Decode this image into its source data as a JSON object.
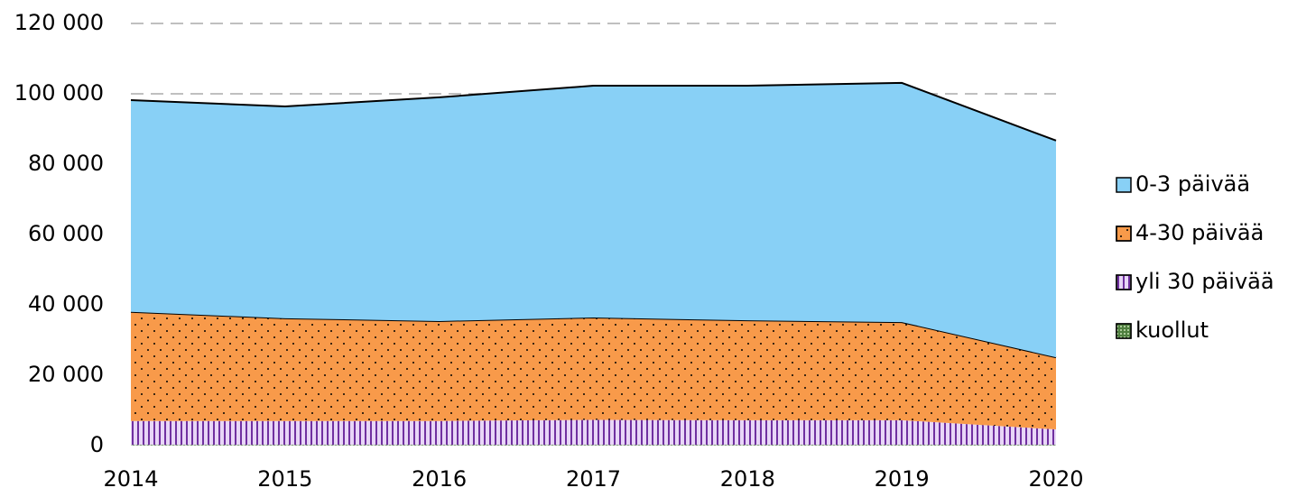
{
  "chart_data": {
    "type": "stacked_area",
    "x": [
      2014,
      2015,
      2016,
      2017,
      2018,
      2019,
      2020
    ],
    "xlim": [
      2014,
      2020
    ],
    "xticks": [
      2014,
      2015,
      2016,
      2017,
      2018,
      2019,
      2020
    ],
    "ylim": [
      0,
      120000
    ],
    "yticks": [
      {
        "value": 0,
        "label": "0"
      },
      {
        "value": 20000,
        "label": "20 000"
      },
      {
        "value": 40000,
        "label": "40 000"
      },
      {
        "value": 60000,
        "label": "60 000"
      },
      {
        "value": 80000,
        "label": "80 000"
      },
      {
        "value": 100000,
        "label": "100 000"
      },
      {
        "value": 120000,
        "label": "120 000"
      }
    ],
    "grid": true,
    "legend": "right",
    "series": [
      {
        "name": "kuollut",
        "color": "#4f7f3f",
        "values": [
          200,
          200,
          200,
          200,
          200,
          200,
          200
        ]
      },
      {
        "name": "yli 30 päivää",
        "color": "#e8d6f7",
        "values": [
          6800,
          6800,
          6800,
          7100,
          7000,
          7000,
          4400
        ]
      },
      {
        "name": "4-30 päivää",
        "color": "#f89a4a",
        "values": [
          31000,
          29200,
          28400,
          29100,
          28400,
          27900,
          20500
        ]
      },
      {
        "name": "0-3 päivää",
        "color": "#88d0f6",
        "values": [
          60200,
          60200,
          63600,
          65900,
          66700,
          68000,
          61600
        ]
      }
    ]
  }
}
